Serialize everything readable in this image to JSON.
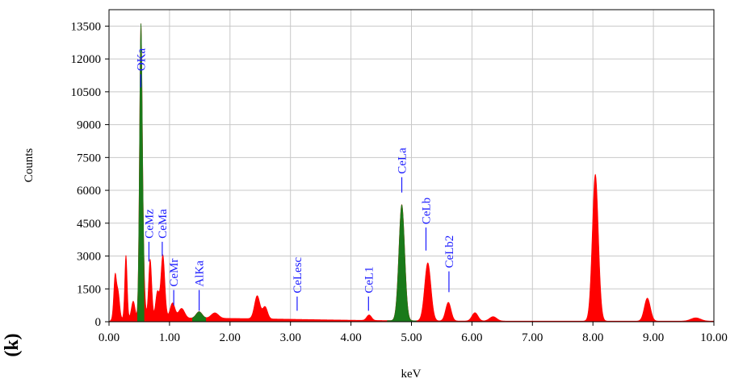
{
  "panel_label": "(k)",
  "chart_data": {
    "type": "area",
    "title": "",
    "xlabel": "keV",
    "ylabel": "Counts",
    "xlim": [
      0,
      10
    ],
    "ylim": [
      0,
      14250
    ],
    "grid": true,
    "x_ticks": [
      "0.00",
      "1.00",
      "2.00",
      "3.00",
      "4.00",
      "5.00",
      "6.00",
      "7.00",
      "8.00",
      "9.00",
      "10.00"
    ],
    "y_ticks": [
      0,
      1500,
      3000,
      4500,
      6000,
      7500,
      9000,
      10500,
      12000,
      13500
    ],
    "colors": {
      "spectrum": "#ff0000",
      "identified": "#1a7a1a",
      "labels": "#1a1aff",
      "grid": "#c8c8c8"
    },
    "peaks": [
      {
        "x": 0.1,
        "y": 1900,
        "w": 0.022
      },
      {
        "x": 0.15,
        "y": 1200,
        "w": 0.025
      },
      {
        "x": 0.28,
        "y": 2900,
        "w": 0.02
      },
      {
        "x": 0.4,
        "y": 800,
        "w": 0.03
      },
      {
        "x": 0.525,
        "y": 10900,
        "w": 0.022
      },
      {
        "x": 0.55,
        "y": 3500,
        "w": 0.03
      },
      {
        "x": 0.68,
        "y": 2700,
        "w": 0.026
      },
      {
        "x": 0.8,
        "y": 1200,
        "w": 0.03
      },
      {
        "x": 0.89,
        "y": 2900,
        "w": 0.032
      },
      {
        "x": 1.05,
        "y": 700,
        "w": 0.04
      },
      {
        "x": 1.2,
        "y": 450,
        "w": 0.05
      },
      {
        "x": 1.49,
        "y": 300,
        "w": 0.05
      },
      {
        "x": 1.75,
        "y": 250,
        "w": 0.06
      },
      {
        "x": 2.45,
        "y": 1050,
        "w": 0.045
      },
      {
        "x": 2.58,
        "y": 550,
        "w": 0.04
      },
      {
        "x": 4.3,
        "y": 250,
        "w": 0.04
      },
      {
        "x": 4.84,
        "y": 5300,
        "w": 0.048
      },
      {
        "x": 5.27,
        "y": 2650,
        "w": 0.052
      },
      {
        "x": 5.61,
        "y": 850,
        "w": 0.045
      },
      {
        "x": 6.05,
        "y": 380,
        "w": 0.05
      },
      {
        "x": 6.35,
        "y": 200,
        "w": 0.06
      },
      {
        "x": 8.04,
        "y": 6700,
        "w": 0.05
      },
      {
        "x": 8.9,
        "y": 1050,
        "w": 0.05
      },
      {
        "x": 9.7,
        "y": 150,
        "w": 0.08
      }
    ],
    "identified_regions": [
      [
        0.47,
        0.58
      ],
      [
        1.38,
        1.6
      ],
      [
        4.6,
        5.08
      ]
    ],
    "annotations": [
      {
        "label": "OKa",
        "x": 0.525,
        "line_top": 11300,
        "line_bottom": 10700
      },
      {
        "label": "CeMz",
        "x": 0.66,
        "line_top": 3650,
        "line_bottom": 2750
      },
      {
        "label": "CeMa",
        "x": 0.88,
        "line_top": 3650,
        "line_bottom": 3000
      },
      {
        "label": "CeMr",
        "x": 1.07,
        "line_top": 1450,
        "line_bottom": 750
      },
      {
        "label": "AlKa",
        "x": 1.49,
        "line_top": 1450,
        "line_bottom": 500
      },
      {
        "label": "CeLesc",
        "x": 3.11,
        "line_top": 1150,
        "line_bottom": 500
      },
      {
        "label": "CeL1",
        "x": 4.29,
        "line_top": 1150,
        "line_bottom": 500
      },
      {
        "label": "CeLa",
        "x": 4.84,
        "line_top": 6600,
        "line_bottom": 5900
      },
      {
        "label": "CeLb",
        "x": 5.24,
        "line_top": 4300,
        "line_bottom": 3250
      },
      {
        "label": "CeLb2",
        "x": 5.62,
        "line_top": 2300,
        "line_bottom": 1350
      }
    ]
  }
}
